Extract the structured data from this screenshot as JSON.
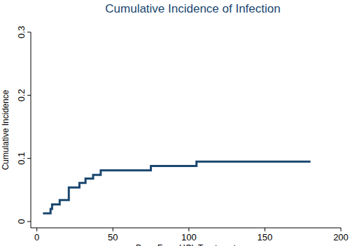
{
  "chart_data": {
    "type": "step",
    "title": "Cumulative Incidence of Infection",
    "x_label": "Days From HCL Treatment",
    "y_label": "Cumulative Incidence",
    "x": [
      4,
      9,
      10,
      15,
      21,
      28,
      32,
      37,
      42,
      75,
      105,
      180
    ],
    "values": [
      0.013,
      0.02,
      0.027,
      0.034,
      0.054,
      0.061,
      0.068,
      0.074,
      0.081,
      0.088,
      0.095,
      0.095
    ],
    "color": "#1a476f",
    "xlim": [
      -4,
      200
    ],
    "xticks": [
      0,
      50,
      100,
      150,
      200
    ],
    "ylim": [
      -0.01,
      0.3
    ],
    "yticks": [
      0,
      0.1,
      0.2,
      0.3
    ],
    "grid": false
  }
}
